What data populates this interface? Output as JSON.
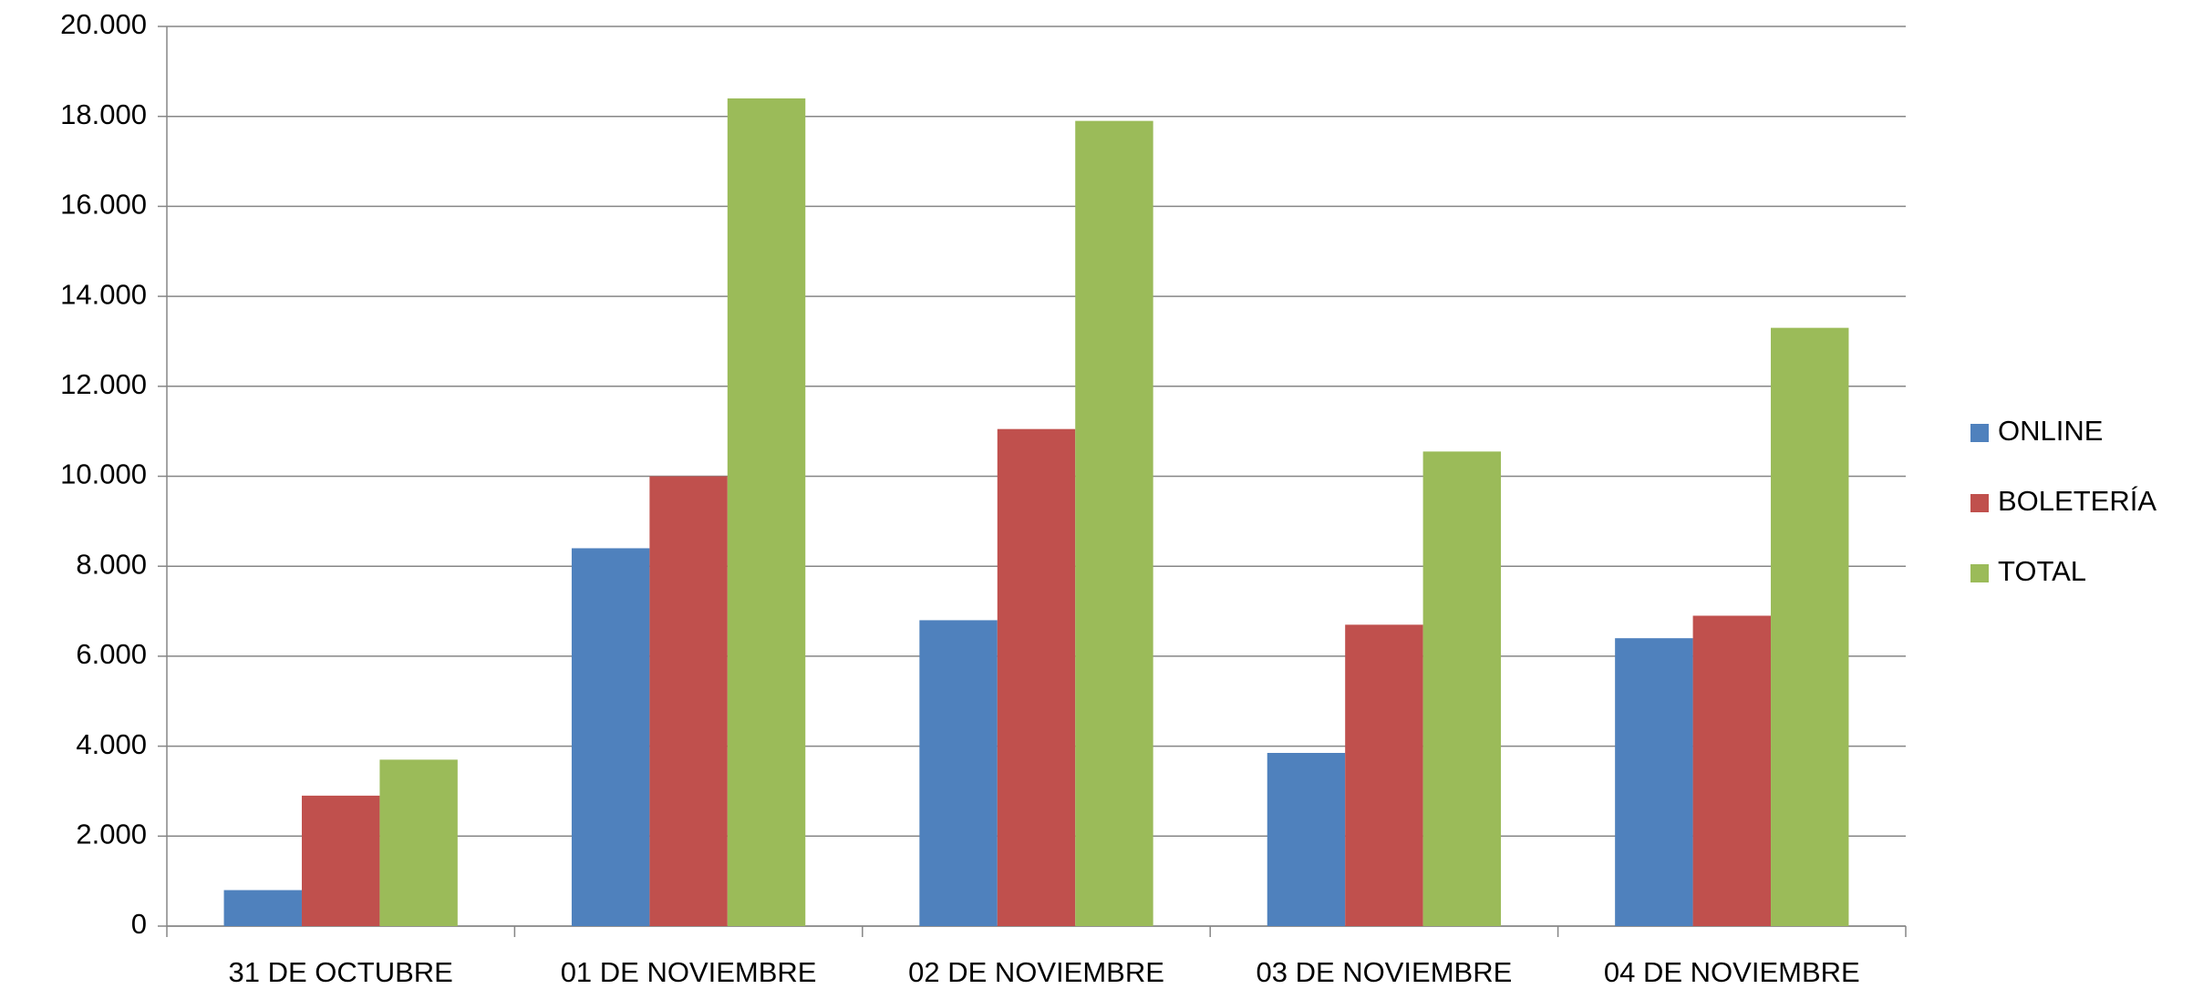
{
  "chart_data": {
    "type": "bar",
    "categories": [
      "31 DE OCTUBRE",
      "01 DE NOVIEMBRE",
      "02 DE NOVIEMBRE",
      "03 DE NOVIEMBRE",
      "04 DE NOVIEMBRE"
    ],
    "series": [
      {
        "name": "ONLINE",
        "color": "#4f81bd",
        "values": [
          800,
          8400,
          6800,
          3850,
          6400
        ]
      },
      {
        "name": "BOLETERÍA",
        "color": "#c0504d",
        "values": [
          2900,
          10000,
          11050,
          6700,
          6900
        ]
      },
      {
        "name": "TOTAL",
        "color": "#9bbb59",
        "values": [
          3700,
          18400,
          17900,
          10550,
          13300
        ]
      }
    ],
    "ylim": [
      0,
      20000
    ],
    "yticks": [
      0,
      {
        "value": 2000,
        "label": "2.000"
      },
      {
        "value": 4000,
        "label": "4.000"
      },
      {
        "value": 6000,
        "label": "6.000"
      },
      {
        "value": 8000,
        "label": "8.000"
      },
      {
        "value": 10000,
        "label": "10.000"
      },
      {
        "value": 12000,
        "label": "12.000"
      },
      {
        "value": 14000,
        "label": "14.000"
      },
      {
        "value": 16000,
        "label": "16.000"
      },
      {
        "value": 18000,
        "label": "18.000"
      },
      {
        "value": 20000,
        "label": "20.000"
      }
    ],
    "grid": true,
    "legend": "right"
  }
}
